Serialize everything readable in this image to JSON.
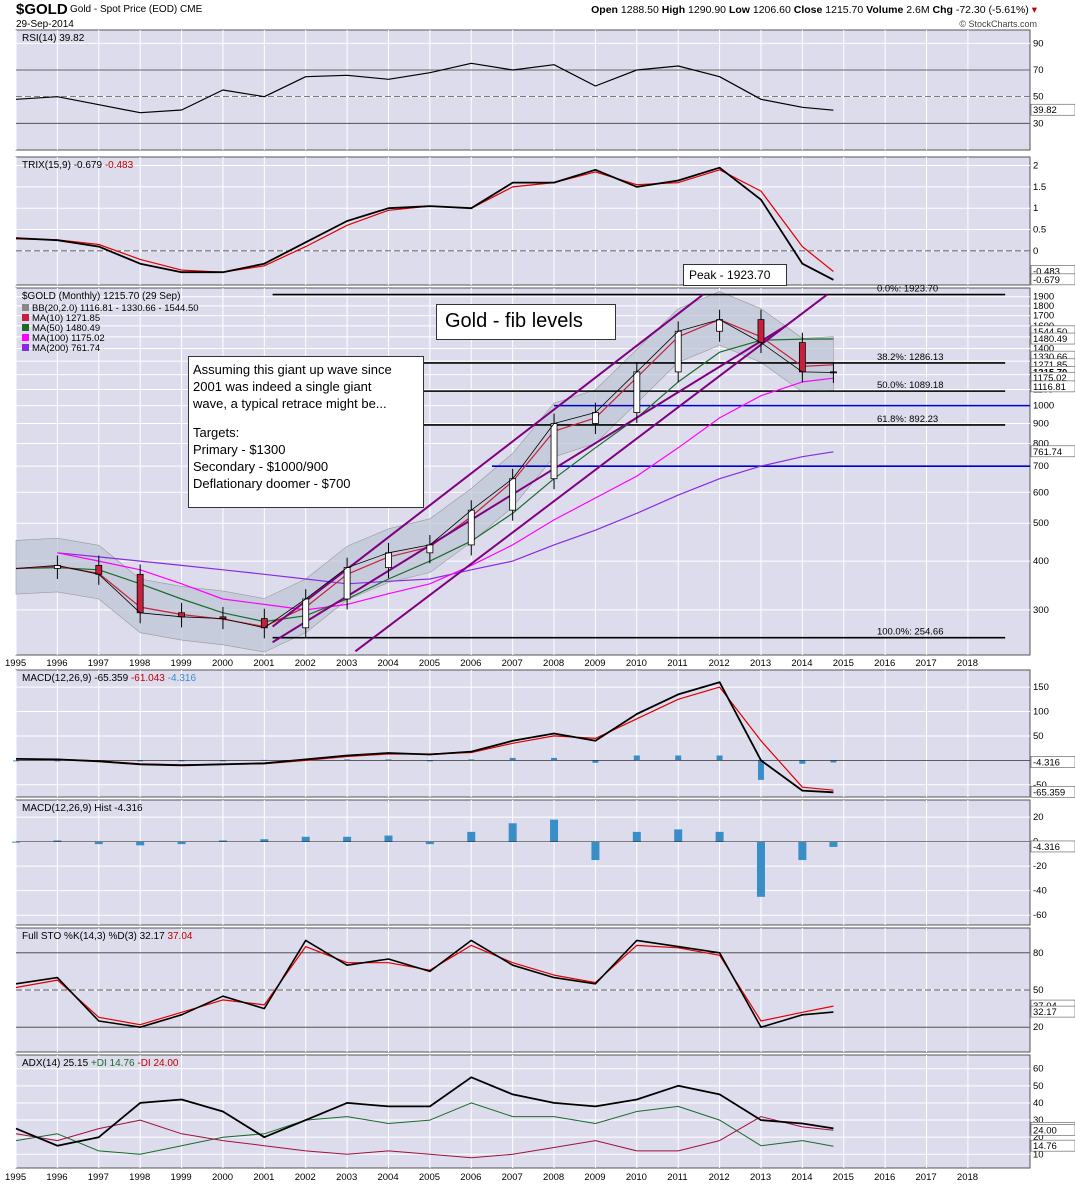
{
  "header": {
    "symbol": "$GOLD",
    "name": "Gold - Spot Price (EOD)",
    "exchange": "CME",
    "date": "29-Sep-2014",
    "open_label": "Open",
    "open": "1288.50",
    "high_label": "High",
    "high": "1290.90",
    "low_label": "Low",
    "low": "1206.60",
    "close_label": "Close",
    "close": "1215.70",
    "volume_label": "Volume",
    "volume": "2.6M",
    "chg_label": "Chg",
    "chg": "-72.30 (-5.61%)",
    "brand": "© StockCharts.com"
  },
  "colors": {
    "panel_bg": "#dcdcec",
    "grid": "#ffffff",
    "price": "#000000",
    "up": "#ffffff",
    "down": "#c8203c",
    "ma10": "#c8203c",
    "ma50": "#1a6b2a",
    "ma100": "#ff00ff",
    "ma200": "#8a2be2",
    "channel": "#800080",
    "signal": "#e00000",
    "hist": "#3a8ec8",
    "blue_line": "#0000cc",
    "bb_fill": "#bcc4d4"
  },
  "annotations": {
    "chart_title": "Gold - fib levels",
    "peak": "Peak - 1923.70",
    "note": [
      "Assuming this giant up wave since",
      "2001 was indeed a single giant",
      "wave, a typical retrace might be..."
    ],
    "targets_head": "Targets:",
    "targets": [
      "Primary - $1300",
      "Secondary - $1000/900",
      "Deflationary doomer - $700"
    ]
  },
  "chart_data": [
    {
      "type": "line",
      "panel": "RSI",
      "title": "RSI(14) 39.82",
      "y_ticks": [
        90,
        70,
        50,
        30
      ],
      "ylim": [
        10,
        100
      ],
      "levels": [
        70,
        30
      ],
      "right_labels": [
        {
          "text": "39.82",
          "value": 39.82
        }
      ],
      "x": [
        1995,
        1996,
        1997,
        1998,
        1999,
        2000,
        2001,
        2002,
        2003,
        2004,
        2005,
        2006,
        2007,
        2008,
        2009,
        2010,
        2011,
        2012,
        2013,
        2014,
        2014.75
      ],
      "series": [
        {
          "values": [
            48,
            50,
            44,
            38,
            40,
            55,
            50,
            65,
            66,
            63,
            68,
            75,
            70,
            74,
            58,
            70,
            73,
            65,
            48,
            42,
            39.82
          ]
        }
      ]
    },
    {
      "type": "line",
      "panel": "TRIX",
      "title": "TRIX(15,9)",
      "title_v1": "-0.679",
      "title_v2": "-0.483",
      "y_ticks": [
        2.0,
        1.5,
        1.0,
        0.5,
        0.0
      ],
      "ylim": [
        -0.8,
        2.2
      ],
      "right_labels": [
        {
          "text": "-0.483",
          "value": -0.483,
          "color": "#c00000"
        },
        {
          "text": "-0.679",
          "value": -0.679
        }
      ],
      "x": [
        1995,
        1996,
        1997,
        1998,
        1999,
        2000,
        2001,
        2002,
        2003,
        2004,
        2005,
        2006,
        2007,
        2008,
        2009,
        2010,
        2011,
        2012,
        2013,
        2014,
        2014.75
      ],
      "series": [
        {
          "values": [
            0.3,
            0.25,
            0.1,
            -0.3,
            -0.5,
            -0.5,
            -0.3,
            0.2,
            0.7,
            1.0,
            1.05,
            1.0,
            1.6,
            1.6,
            1.9,
            1.5,
            1.65,
            1.95,
            1.2,
            -0.3,
            -0.679
          ]
        },
        {
          "values": [
            0.28,
            0.26,
            0.15,
            -0.2,
            -0.45,
            -0.5,
            -0.35,
            0.1,
            0.6,
            0.95,
            1.05,
            1.0,
            1.5,
            1.6,
            1.85,
            1.55,
            1.6,
            1.9,
            1.4,
            0.1,
            -0.483
          ]
        }
      ]
    },
    {
      "type": "candlestick",
      "panel": "PRICE",
      "scale": "log",
      "title": "$GOLD (Monthly) 1215.70 (29 Sep)",
      "legend": [
        {
          "text": "BB(20,2.0) 1116.81 - 1330.66 - 1544.50",
          "color": "#888888"
        },
        {
          "text": "MA(10) 1271.85",
          "color": "#c8203c"
        },
        {
          "text": "MA(50) 1480.49",
          "color": "#1a6b2a"
        },
        {
          "text": "MA(100) 1175.02",
          "color": "#ff00ff"
        },
        {
          "text": "MA(200) 761.74",
          "color": "#8a2be2"
        }
      ],
      "y_ticks": [
        1900,
        1800,
        1700,
        1600,
        1500,
        1400,
        1300,
        1200,
        1100,
        1000,
        900,
        800,
        700,
        600,
        500,
        400,
        300
      ],
      "ylim": [
        230,
        2000
      ],
      "right_labels": [
        {
          "text": "1544.50",
          "value": 1544.5
        },
        {
          "text": "1480.49",
          "value": 1480.49
        },
        {
          "text": "1330.66",
          "value": 1330.66
        },
        {
          "text": "1271.85",
          "value": 1271.85
        },
        {
          "text": "1215.70",
          "value": 1215.7,
          "bold": true
        },
        {
          "text": "1175.02",
          "value": 1175.02
        },
        {
          "text": "1116.81",
          "value": 1116.81
        },
        {
          "text": "761.74",
          "value": 761.74,
          "boxed": true
        }
      ],
      "fib_levels": [
        {
          "label": "0.0%: 1923.70",
          "value": 1923.7
        },
        {
          "label": "38.2%: 1286.13",
          "value": 1286.13
        },
        {
          "label": "50.0%: 1089.18",
          "value": 1089.18
        },
        {
          "label": "61.8%: 892.23",
          "value": 892.23
        },
        {
          "label": "100.0%: 254.66",
          "value": 254.66
        }
      ],
      "support_levels": [
        {
          "value": 1000,
          "from": 2008,
          "to": 2019.5
        },
        {
          "value": 700,
          "from": 2006.5,
          "to": 2019.5
        }
      ],
      "channel": {
        "upper": [
          [
            2001.2,
            272
          ],
          [
            2011.6,
            1923.7
          ]
        ],
        "lower": [
          [
            2003.2,
            235
          ],
          [
            2014.6,
            1923.7
          ]
        ],
        "mid": [
          [
            2001.2,
            248
          ],
          [
            2013.6,
            1600
          ]
        ]
      },
      "x": [
        1995,
        1996,
        1997,
        1998,
        1999,
        2000,
        2001,
        2002,
        2003,
        2004,
        2005,
        2006,
        2007,
        2008,
        2009,
        2010,
        2011,
        2012,
        2013,
        2014,
        2014.75
      ],
      "close": [
        383,
        390,
        370,
        295,
        288,
        285,
        270,
        320,
        385,
        420,
        440,
        540,
        650,
        900,
        960,
        1220,
        1550,
        1660,
        1450,
        1220,
        1215.7
      ],
      "ma10": [
        383,
        388,
        372,
        305,
        292,
        284,
        272,
        305,
        370,
        410,
        435,
        520,
        640,
        860,
        930,
        1180,
        1500,
        1660,
        1500,
        1260,
        1271.85
      ],
      "ma50": [
        383,
        385,
        380,
        350,
        320,
        295,
        280,
        290,
        320,
        360,
        400,
        450,
        530,
        650,
        780,
        930,
        1150,
        1370,
        1470,
        1480,
        1480.49
      ],
      "ma100": [
        null,
        420,
        400,
        380,
        350,
        320,
        310,
        300,
        310,
        330,
        350,
        390,
        440,
        510,
        580,
        660,
        780,
        930,
        1060,
        1150,
        1175.02
      ],
      "ma200": [
        null,
        420,
        410,
        400,
        390,
        380,
        370,
        360,
        350,
        355,
        360,
        380,
        400,
        440,
        480,
        530,
        590,
        650,
        700,
        740,
        761.74
      ]
    },
    {
      "type": "line",
      "panel": "MACD",
      "title": "MACD(12,26,9)",
      "title_v1": "-65.359",
      "title_v2": "-61.043",
      "title_v3": "-4.316",
      "y_ticks": [
        150,
        100,
        50,
        -50
      ],
      "ylim": [
        -75,
        185
      ],
      "right_labels": [
        {
          "text": "-4.316",
          "value": -4.316
        },
        {
          "text": "-65.359",
          "value": -65.359
        }
      ],
      "x": [
        1995,
        1996,
        1997,
        1998,
        1999,
        2000,
        2001,
        2002,
        2003,
        2004,
        2005,
        2006,
        2007,
        2008,
        2009,
        2010,
        2011,
        2012,
        2013,
        2014,
        2014.75
      ],
      "series": [
        {
          "values": [
            3,
            2,
            -2,
            -8,
            -10,
            -8,
            -6,
            2,
            10,
            15,
            12,
            18,
            40,
            55,
            40,
            95,
            135,
            160,
            0,
            -62,
            -65.359
          ]
        },
        {
          "values": [
            3,
            2,
            -1,
            -7,
            -9,
            -8,
            -7,
            0,
            8,
            13,
            13,
            16,
            35,
            50,
            45,
            85,
            125,
            150,
            40,
            -55,
            -61.043
          ]
        }
      ],
      "histogram": [
        0,
        0,
        -1,
        -1,
        -1,
        0,
        1,
        2,
        2,
        2,
        -1,
        2,
        5,
        5,
        -5,
        10,
        10,
        10,
        -40,
        -7,
        -4.316
      ]
    },
    {
      "type": "bar",
      "panel": "MACD_HIST",
      "title": "MACD(12,26,9) Hist -4.316",
      "y_ticks": [
        20,
        0,
        -20,
        -40,
        -60
      ],
      "ylim": [
        -68,
        34
      ],
      "right_labels": [
        {
          "text": "-4.316",
          "value": -4.316
        }
      ],
      "x": [
        1995,
        1996,
        1997,
        1998,
        1999,
        2000,
        2001,
        2002,
        2003,
        2004,
        2005,
        2006,
        2007,
        2008,
        2009,
        2010,
        2011,
        2012,
        2013,
        2014,
        2014.75
      ],
      "values": [
        0,
        1,
        -2,
        -3,
        -2,
        1,
        2,
        4,
        4,
        5,
        -2,
        8,
        15,
        18,
        -15,
        8,
        10,
        8,
        -45,
        -15,
        -4.316
      ]
    },
    {
      "type": "line",
      "panel": "STO",
      "title": "Full STO %K(14,3) %D(3)",
      "title_v1": "32.17",
      "title_v2": "37.04",
      "y_ticks": [
        80,
        50,
        20
      ],
      "ylim": [
        0,
        100
      ],
      "levels": [
        80,
        20
      ],
      "right_labels": [
        {
          "text": "37.04",
          "value": 37.04
        },
        {
          "text": "32.17",
          "value": 32.17
        }
      ],
      "x": [
        1995,
        1996,
        1997,
        1998,
        1999,
        2000,
        2001,
        2002,
        2003,
        2004,
        2005,
        2006,
        2007,
        2008,
        2009,
        2010,
        2011,
        2012,
        2013,
        2014,
        2014.75
      ],
      "series": [
        {
          "values": [
            55,
            60,
            25,
            20,
            30,
            45,
            35,
            90,
            70,
            75,
            65,
            90,
            70,
            60,
            55,
            90,
            85,
            80,
            20,
            30,
            32.17
          ]
        },
        {
          "values": [
            52,
            58,
            28,
            22,
            32,
            42,
            38,
            85,
            72,
            72,
            66,
            86,
            72,
            62,
            56,
            86,
            84,
            78,
            25,
            32,
            37.04
          ]
        }
      ]
    },
    {
      "type": "line",
      "panel": "ADX",
      "title": "ADX(14) 25.15",
      "plus_label": "+DI 14.76",
      "minus_label": "-DI 24.00",
      "y_ticks": [
        60,
        50,
        40,
        30,
        20,
        10
      ],
      "ylim": [
        2,
        68
      ],
      "right_labels": [
        {
          "text": "25.15",
          "value": 25.15
        },
        {
          "text": "24.00",
          "value": 24.0,
          "color": "#c00000"
        },
        {
          "text": "14.76",
          "value": 14.76,
          "color": "#1a6b2a"
        }
      ],
      "x": [
        1995,
        1996,
        1997,
        1998,
        1999,
        2000,
        2001,
        2002,
        2003,
        2004,
        2005,
        2006,
        2007,
        2008,
        2009,
        2010,
        2011,
        2012,
        2013,
        2014,
        2014.75
      ],
      "series": [
        {
          "values": [
            25,
            15,
            20,
            40,
            42,
            35,
            20,
            30,
            40,
            38,
            38,
            55,
            45,
            40,
            38,
            42,
            50,
            45,
            30,
            28,
            25.15
          ]
        },
        {
          "values": [
            18,
            22,
            12,
            10,
            15,
            20,
            22,
            30,
            32,
            28,
            30,
            40,
            32,
            32,
            28,
            35,
            38,
            30,
            15,
            18,
            14.76
          ]
        },
        {
          "values": [
            22,
            18,
            25,
            30,
            22,
            18,
            15,
            12,
            10,
            12,
            10,
            8,
            10,
            14,
            18,
            12,
            12,
            18,
            32,
            26,
            24.0
          ]
        }
      ]
    }
  ],
  "x_axis": {
    "labels": [
      "1995",
      "1996",
      "1997",
      "1998",
      "1999",
      "2000",
      "2001",
      "2002",
      "2003",
      "2004",
      "2005",
      "2006",
      "2007",
      "2008",
      "2009",
      "2010",
      "2011",
      "2012",
      "2013",
      "2014",
      "2015",
      "2016",
      "2017",
      "2018"
    ]
  }
}
